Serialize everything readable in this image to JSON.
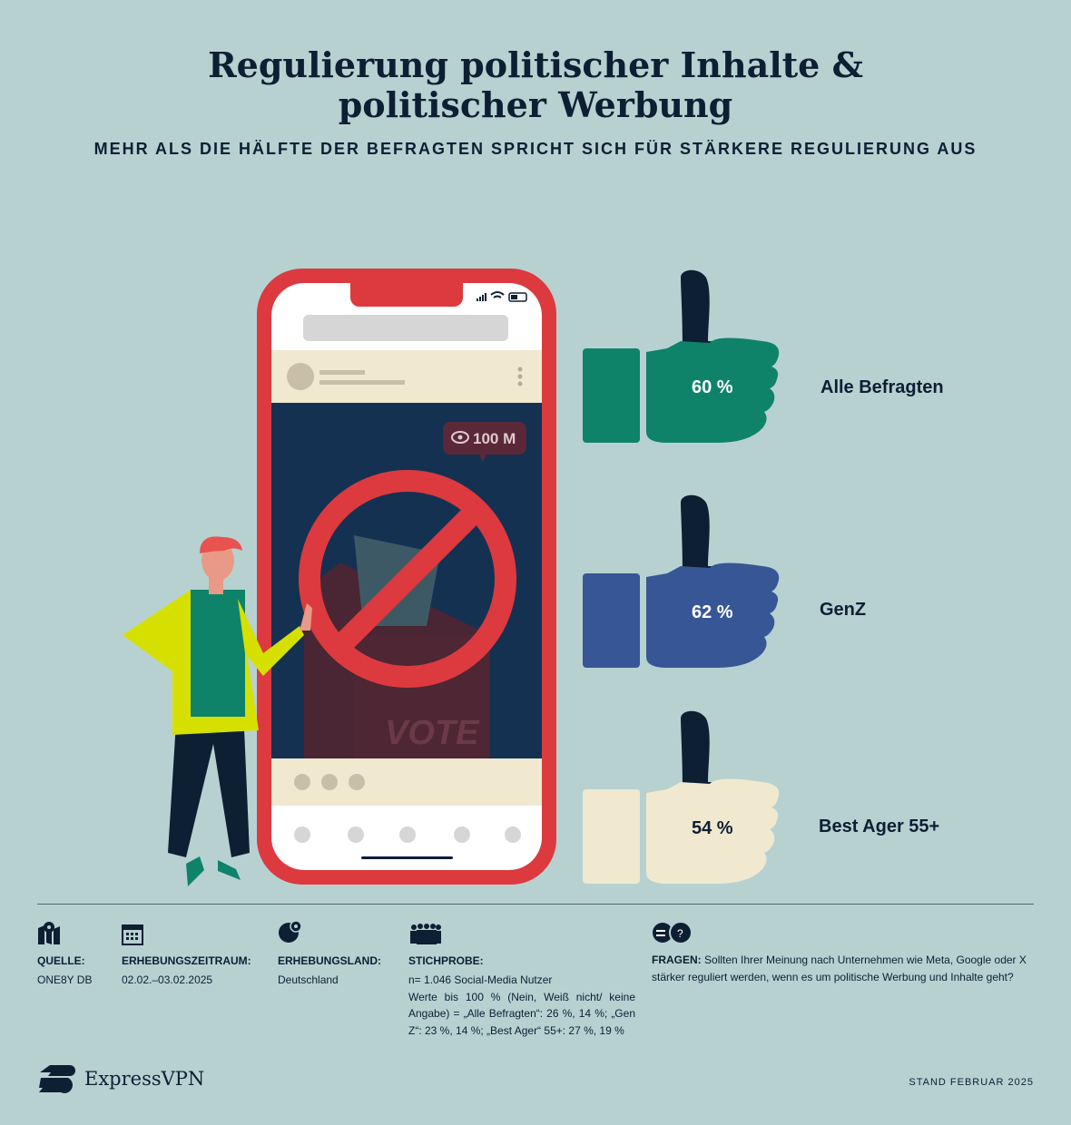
{
  "title_line1": "Regulierung politischer Inhalte &",
  "title_line2": "politischer Werbung",
  "subtitle": "MEHR ALS DIE HÄLFTE DER BEFRAGTEN SPRICHT SICH FÜR STÄRKERE REGULIERUNG AUS",
  "phone": {
    "views": "100 M",
    "ballot_text": "VOTE"
  },
  "groups": [
    {
      "label": "Alle Befragten",
      "value": "60 %",
      "color": "#0e836a",
      "text_color": "#ffffff"
    },
    {
      "label": "GenZ",
      "value": "62 %",
      "color": "#375696",
      "text_color": "#ffffff"
    },
    {
      "label": "Best Ager 55+",
      "value": "54 %",
      "color": "#f0e9cf",
      "text_color": "#0d1f33"
    }
  ],
  "footer": {
    "source_label": "QUELLE:",
    "source_value": "ONE8Y DB",
    "period_label": "ERHEBUNGSZEITRAUM:",
    "period_value": "02.02.–03.02.2025",
    "country_label": "ERHEBUNGSLAND:",
    "country_value": "Deutschland",
    "sample_label": "STICHPROBE:",
    "sample_line1": "n= 1.046 Social-Media Nutzer",
    "sample_line2": "Werte bis 100 % (Nein, Weiß nicht/ keine Angabe) = „Alle Befragten“: 26 %, 14 %; „Gen Z“: 23 %, 14 %; „Best Ager“ 55+: 27 %, 19 %",
    "question_label": "FRAGEN:",
    "question_text": "Sollten Ihrer Meinung nach Unternehmen wie Meta, Google oder X stärker reguliert werden, wenn es um politische Werbung und Inhalte geht?"
  },
  "brand": "ExpressVPN",
  "date_note": "STAND FEBRUAR 2025",
  "colors": {
    "background": "#b7d1d1",
    "navy": "#0d1f33",
    "phone_red": "#dc3a3f"
  }
}
